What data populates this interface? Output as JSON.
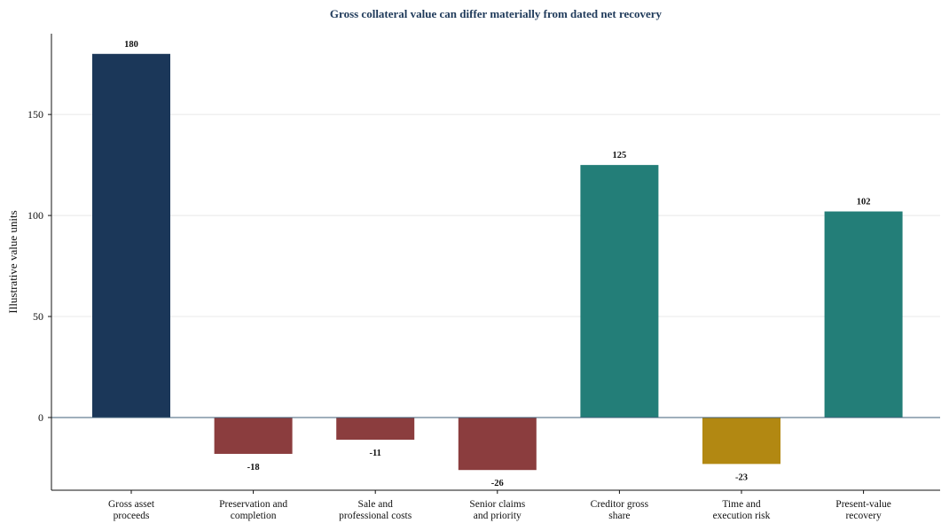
{
  "colors": {
    "title": "#1f3a5a",
    "gross": "#1b3759",
    "negative": "#8b3d3e",
    "share": "#237e78",
    "time": "#b28812",
    "zero_line": "#3f5f78",
    "grid": "#e8e8e8",
    "axis": "#111111"
  },
  "chart_data": {
    "type": "bar",
    "title": "Gross collateral value can differ materially from dated net recovery",
    "ylabel": "Illustrative value units",
    "xlabel": "",
    "ylim": [
      -36,
      190
    ],
    "yticks": [
      0,
      50,
      100,
      150
    ],
    "grid": "horizontal",
    "categories": [
      [
        "Gross asset",
        "proceeds"
      ],
      [
        "Preservation and",
        "completion"
      ],
      [
        "Sale and",
        "professional costs"
      ],
      [
        "Senior claims",
        "and priority"
      ],
      [
        "Creditor gross",
        "share"
      ],
      [
        "Time and",
        "execution risk"
      ],
      [
        "Present-value",
        "recovery"
      ]
    ],
    "values": [
      180,
      -18,
      -11,
      -26,
      125,
      -23,
      102
    ],
    "value_labels": [
      "180",
      "-18",
      "-11",
      "-26",
      "125",
      "-23",
      "102"
    ],
    "bar_colors": [
      "#1b3759",
      "#8b3d3e",
      "#8b3d3e",
      "#8b3d3e",
      "#237e78",
      "#b28812",
      "#237e78"
    ]
  }
}
